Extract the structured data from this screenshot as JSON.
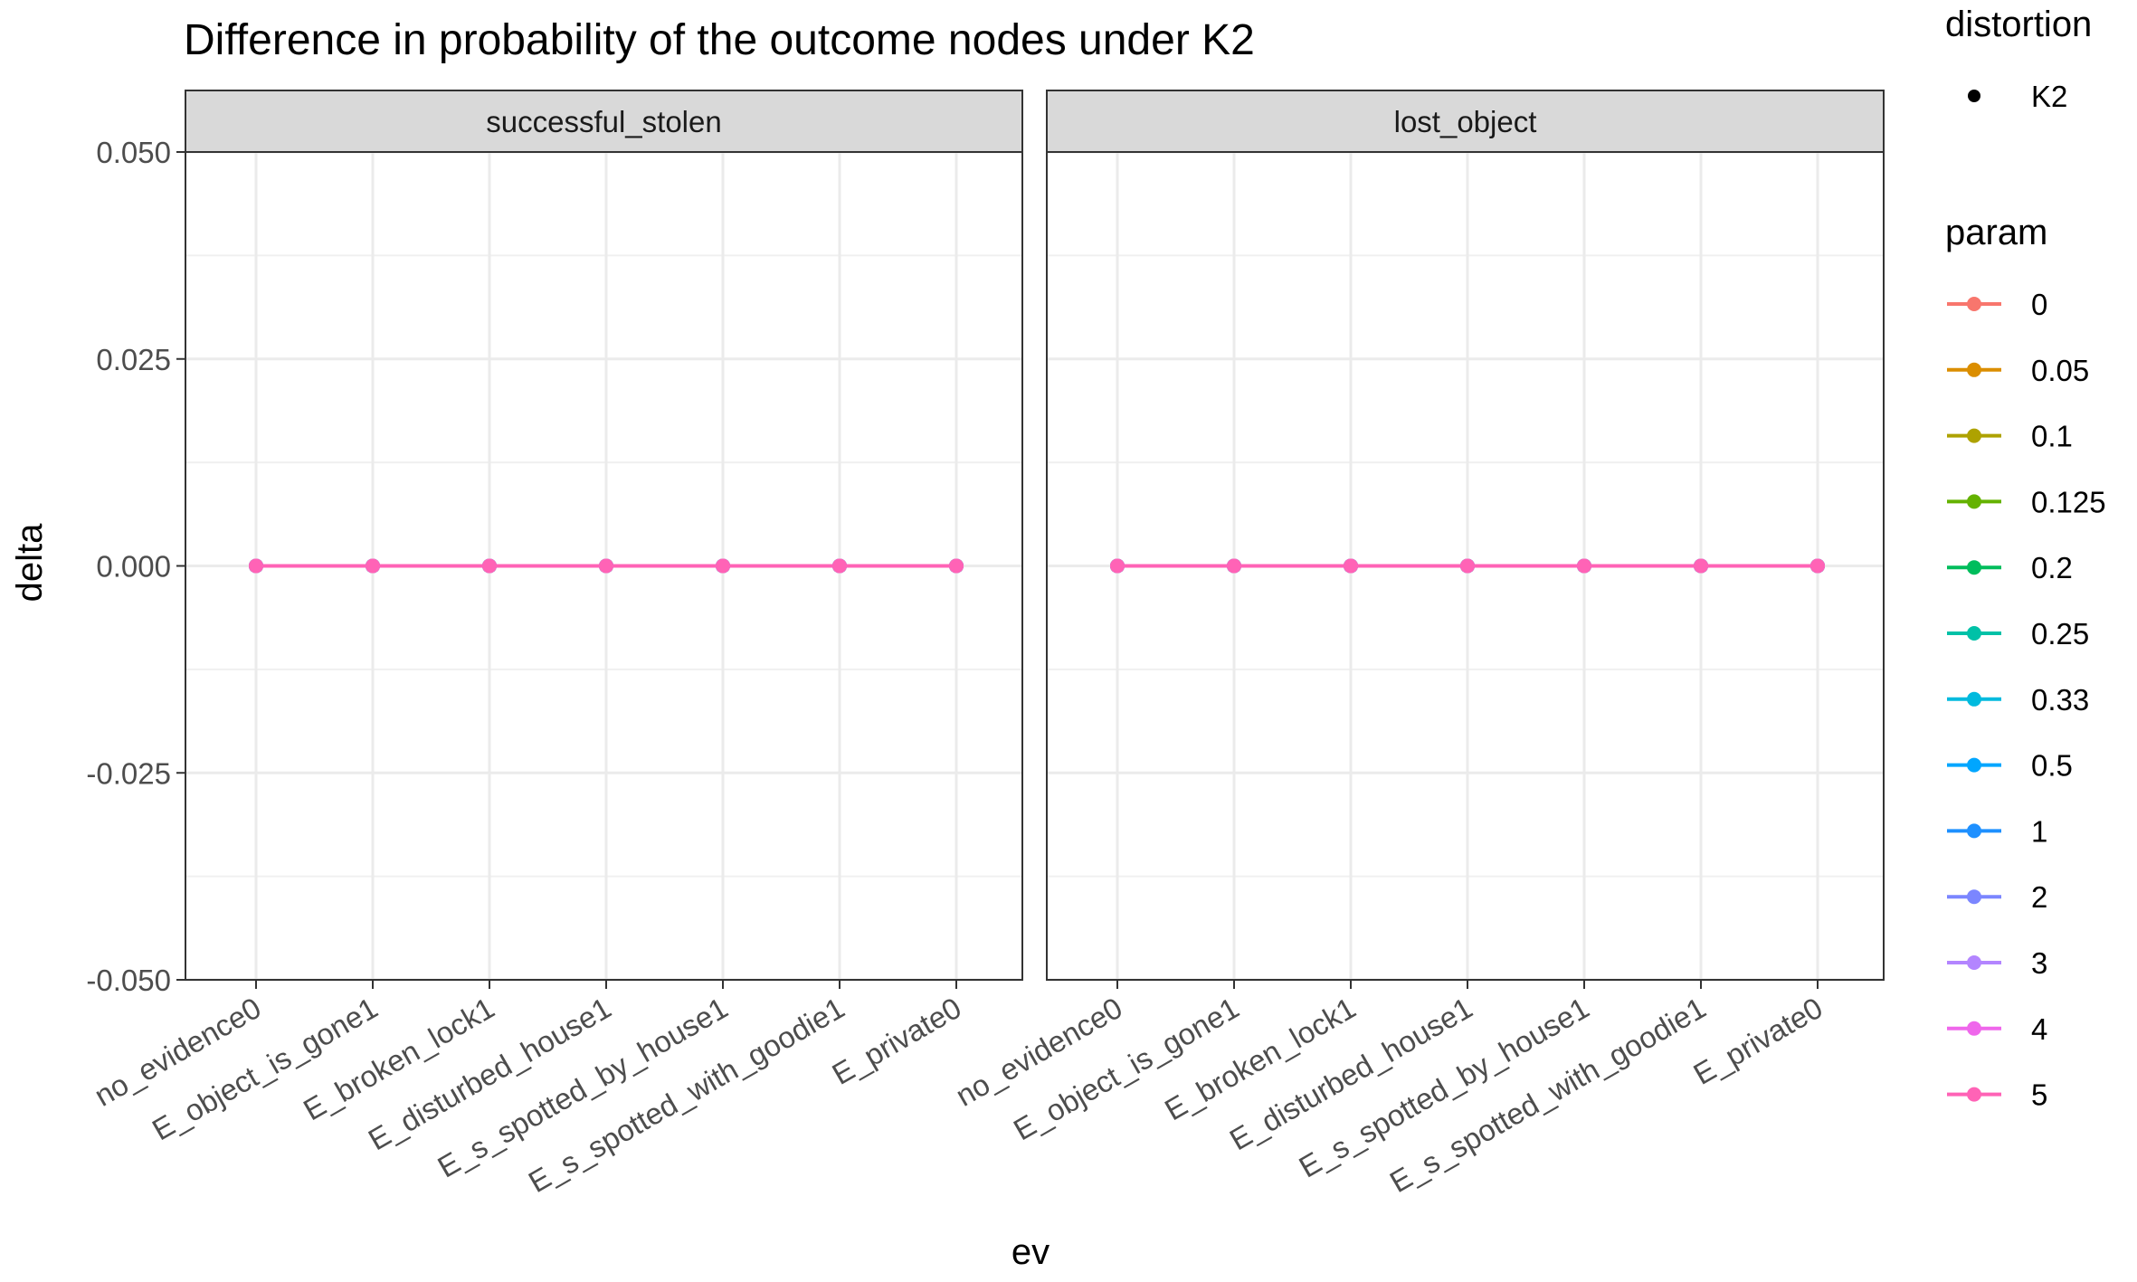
{
  "chart_data": {
    "type": "line",
    "title": "Difference in probability of the outcome nodes under K2",
    "xlabel": "ev",
    "ylabel": "delta",
    "ylim": [
      -0.05,
      0.05
    ],
    "yticks": [
      "0.050",
      "0.025",
      "0.000",
      "-0.025",
      "-0.050"
    ],
    "ytick_values": [
      0.05,
      0.025,
      0.0,
      -0.025,
      -0.05
    ],
    "categories": [
      "no_evidence0",
      "E_object_is_gone1",
      "E_broken_lock1",
      "E_disturbed_house1",
      "E_s_spotted_by_house1",
      "E_s_spotted_with_goodie1",
      "E_private0"
    ],
    "grid": true,
    "legend_position": "right",
    "panels": [
      {
        "label": "successful_stolen"
      },
      {
        "label": "lost_object"
      }
    ],
    "distortion_legend": {
      "title": "distortion",
      "items": [
        "K2"
      ]
    },
    "param_legend": {
      "title": "param"
    },
    "series": [
      {
        "name": "0",
        "color": "#F8766D",
        "values": [
          0,
          0,
          0,
          0,
          0,
          0,
          0
        ]
      },
      {
        "name": "0.05",
        "color": "#DB8E00",
        "values": [
          0,
          0,
          0,
          0,
          0,
          0,
          0
        ]
      },
      {
        "name": "0.1",
        "color": "#AEA200",
        "values": [
          0,
          0,
          0,
          0,
          0,
          0,
          0
        ]
      },
      {
        "name": "0.125",
        "color": "#64B200",
        "values": [
          0,
          0,
          0,
          0,
          0,
          0,
          0
        ]
      },
      {
        "name": "0.2",
        "color": "#00BD5C",
        "values": [
          0,
          0,
          0,
          0,
          0,
          0,
          0
        ]
      },
      {
        "name": "0.25",
        "color": "#00C1A7",
        "values": [
          0,
          0,
          0,
          0,
          0,
          0,
          0
        ]
      },
      {
        "name": "0.33",
        "color": "#00BADE",
        "values": [
          0,
          0,
          0,
          0,
          0,
          0,
          0
        ]
      },
      {
        "name": "0.5",
        "color": "#00A6FF",
        "values": [
          0,
          0,
          0,
          0,
          0,
          0,
          0
        ]
      },
      {
        "name": "1",
        "color": "#1E90FF",
        "values": [
          0,
          0,
          0,
          0,
          0,
          0,
          0
        ]
      },
      {
        "name": "2",
        "color": "#7B86FF",
        "values": [
          0,
          0,
          0,
          0,
          0,
          0,
          0
        ]
      },
      {
        "name": "3",
        "color": "#B385FF",
        "values": [
          0,
          0,
          0,
          0,
          0,
          0,
          0
        ]
      },
      {
        "name": "4",
        "color": "#EF67EB",
        "values": [
          0,
          0,
          0,
          0,
          0,
          0,
          0
        ]
      },
      {
        "name": "5",
        "color": "#FF63B6",
        "values": [
          0,
          0,
          0,
          0,
          0,
          0,
          0
        ]
      }
    ]
  }
}
